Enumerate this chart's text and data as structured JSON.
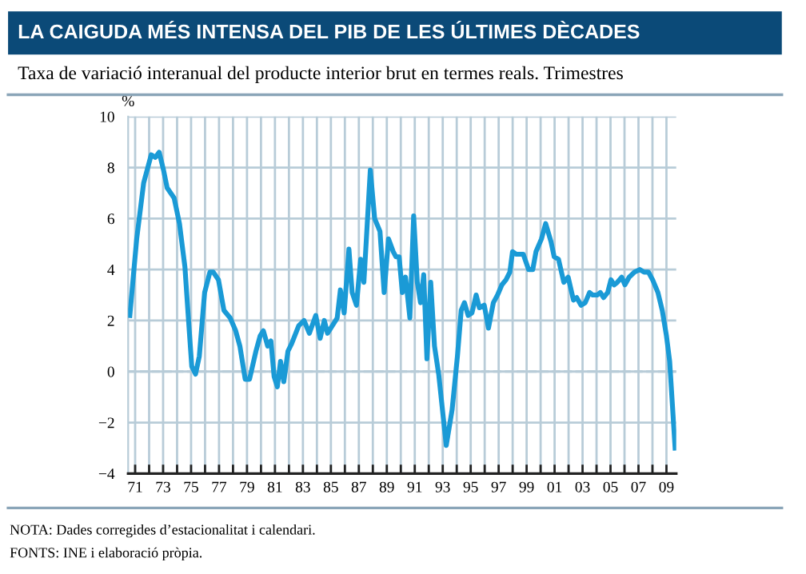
{
  "chart_data": {
    "type": "line",
    "title": "LA CAIGUDA MÉS INTENSA DEL PIB DE LES ÚLTIMES DÈCADES",
    "subtitle": "Taxa de variació interanual del producte interior brut en termes reals. Trimestres",
    "ylabel": "%",
    "annotations": [
      "NOTA: Dades corregides d’estacionalitat i calendari.",
      "FONTS: INE i elaboració pròpia."
    ],
    "series": [
      {
        "color": "#1a9ad6",
        "x": [
          1970.62,
          1971.11,
          1971.61,
          1972.15,
          1972.45,
          1972.72,
          1973.03,
          1973.29,
          1973.79,
          1974.17,
          1974.56,
          1974.82,
          1975.05,
          1975.32,
          1975.59,
          1975.97,
          1976.35,
          1976.58,
          1976.96,
          1977.35,
          1977.8,
          1978.19,
          1978.49,
          1978.87,
          1979.18,
          1979.64,
          1979.94,
          1980.17,
          1980.48,
          1980.71,
          1980.94,
          1981.17,
          1981.4,
          1981.63,
          1981.93,
          1982.2,
          1982.7,
          1983.08,
          1983.46,
          1983.92,
          1984.23,
          1984.53,
          1984.76,
          1985.45,
          1985.68,
          1985.95,
          1986.29,
          1986.52,
          1986.83,
          1987.13,
          1987.36,
          1987.82,
          1988.13,
          1988.51,
          1988.81,
          1989.12,
          1989.46,
          1989.65,
          1989.88,
          1990.11,
          1990.34,
          1990.65,
          1990.92,
          1991.18,
          1991.41,
          1991.64,
          1991.87,
          1992.14,
          1992.41,
          1992.71,
          1993.25,
          1993.67,
          1994.05,
          1994.32,
          1994.55,
          1994.82,
          1995.09,
          1995.39,
          1995.62,
          1995.97,
          1996.27,
          1996.62,
          1996.92,
          1997.23,
          1997.53,
          1997.8,
          1997.99,
          1998.26,
          1998.76,
          1999.14,
          1999.44,
          1999.67,
          2000.06,
          2000.36,
          2000.74,
          2000.97,
          2001.28,
          2001.66,
          2001.97,
          2002.35,
          2002.58,
          2002.89,
          2003.19,
          2003.5,
          2003.73,
          2004.04,
          2004.27,
          2004.5,
          2004.8,
          2005.03,
          2005.26,
          2005.49,
          2005.8,
          2006.03,
          2006.33,
          2006.72,
          2007.09,
          2007.4,
          2007.71,
          2008.01,
          2008.39,
          2008.7,
          2009.0,
          2009.23,
          2009.62
        ],
        "values": [
          2.2,
          5.2,
          7.4,
          8.5,
          8.4,
          8.6,
          7.9,
          7.2,
          6.8,
          5.8,
          4.1,
          2.0,
          0.2,
          -0.1,
          0.6,
          3.1,
          3.9,
          3.9,
          3.6,
          2.4,
          2.1,
          1.6,
          1.0,
          -0.3,
          -0.3,
          0.8,
          1.4,
          1.6,
          1.0,
          1.2,
          -0.2,
          -0.6,
          0.4,
          -0.4,
          0.8,
          1.1,
          1.8,
          2.0,
          1.5,
          2.2,
          1.3,
          2.0,
          1.5,
          2.1,
          3.2,
          2.3,
          4.8,
          3.1,
          2.6,
          4.4,
          3.5,
          7.9,
          6.0,
          5.5,
          3.1,
          5.2,
          4.7,
          4.5,
          4.5,
          3.1,
          3.7,
          2.1,
          6.1,
          3.5,
          2.7,
          3.8,
          0.5,
          3.5,
          1.0,
          -0.1,
          -2.9,
          -1.5,
          0.6,
          2.4,
          2.7,
          2.2,
          2.3,
          3.0,
          2.5,
          2.6,
          1.7,
          2.7,
          3.0,
          3.4,
          3.6,
          3.9,
          4.7,
          4.6,
          4.6,
          4.0,
          4.0,
          4.7,
          5.2,
          5.8,
          5.1,
          4.5,
          4.4,
          3.5,
          3.7,
          2.8,
          2.9,
          2.6,
          2.7,
          3.1,
          3.0,
          3.0,
          3.1,
          2.9,
          3.1,
          3.6,
          3.4,
          3.5,
          3.7,
          3.4,
          3.7,
          3.9,
          4.0,
          3.9,
          3.9,
          3.6,
          3.1,
          2.4,
          1.4,
          0.4,
          -3.0
        ]
      }
    ],
    "xlim": [
      1970.5,
      2009.7
    ],
    "xticks": [
      {
        "value": 1971,
        "label": "71"
      },
      {
        "value": 1972,
        "label": null
      },
      {
        "value": 1973,
        "label": "73"
      },
      {
        "value": 1974,
        "label": null
      },
      {
        "value": 1975,
        "label": "75"
      },
      {
        "value": 1976,
        "label": null
      },
      {
        "value": 1977,
        "label": "77"
      },
      {
        "value": 1978,
        "label": null
      },
      {
        "value": 1979,
        "label": "79"
      },
      {
        "value": 1980,
        "label": null
      },
      {
        "value": 1981,
        "label": "81"
      },
      {
        "value": 1982,
        "label": null
      },
      {
        "value": 1983,
        "label": "83"
      },
      {
        "value": 1984,
        "label": null
      },
      {
        "value": 1985,
        "label": "85"
      },
      {
        "value": 1986,
        "label": null
      },
      {
        "value": 1987,
        "label": "87"
      },
      {
        "value": 1988,
        "label": null
      },
      {
        "value": 1989,
        "label": "89"
      },
      {
        "value": 1990,
        "label": null
      },
      {
        "value": 1991,
        "label": "91"
      },
      {
        "value": 1992,
        "label": null
      },
      {
        "value": 1993,
        "label": "93"
      },
      {
        "value": 1994,
        "label": null
      },
      {
        "value": 1995,
        "label": "95"
      },
      {
        "value": 1996,
        "label": null
      },
      {
        "value": 1997,
        "label": "97"
      },
      {
        "value": 1998,
        "label": null
      },
      {
        "value": 1999,
        "label": "99"
      },
      {
        "value": 2000,
        "label": null
      },
      {
        "value": 2001,
        "label": "01"
      },
      {
        "value": 2002,
        "label": null
      },
      {
        "value": 2003,
        "label": "03"
      },
      {
        "value": 2004,
        "label": null
      },
      {
        "value": 2005,
        "label": "05"
      },
      {
        "value": 2006,
        "label": null
      },
      {
        "value": 2007,
        "label": "07"
      },
      {
        "value": 2008,
        "label": null
      },
      {
        "value": 2009,
        "label": "09"
      }
    ],
    "ylim": [
      -4,
      10
    ],
    "yticks": [
      {
        "value": -4,
        "label": "−4"
      },
      {
        "value": -2,
        "label": "−2"
      },
      0,
      2,
      4,
      6,
      8,
      10
    ],
    "ref_lines": [
      {
        "axis": "y",
        "value": 0,
        "color": "#b8ccd8",
        "line_style": "dashed"
      }
    ],
    "grid": true,
    "line_style": "solid",
    "marker": "none"
  }
}
